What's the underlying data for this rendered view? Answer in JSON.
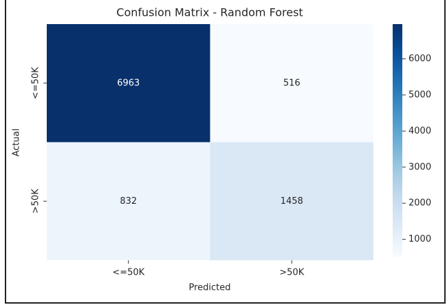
{
  "chart_data": {
    "type": "heatmap",
    "title": "Confusion Matrix - Random Forest",
    "x_label": "Predicted",
    "y_label": "Actual",
    "x_categories": [
      "<=50K",
      ">50K"
    ],
    "y_categories": [
      "<=50K",
      ">50K"
    ],
    "values": [
      [
        6963,
        516
      ],
      [
        832,
        1458
      ]
    ],
    "zlim": [
      516,
      6963
    ],
    "zticks": [
      1000,
      2000,
      3000,
      4000,
      5000,
      6000
    ],
    "colormap": [
      "#f7fbff",
      "#deebf7",
      "#c6dbef",
      "#9ecae1",
      "#6baed6",
      "#4292c6",
      "#2171b5",
      "#08519c",
      "#08306b"
    ]
  }
}
